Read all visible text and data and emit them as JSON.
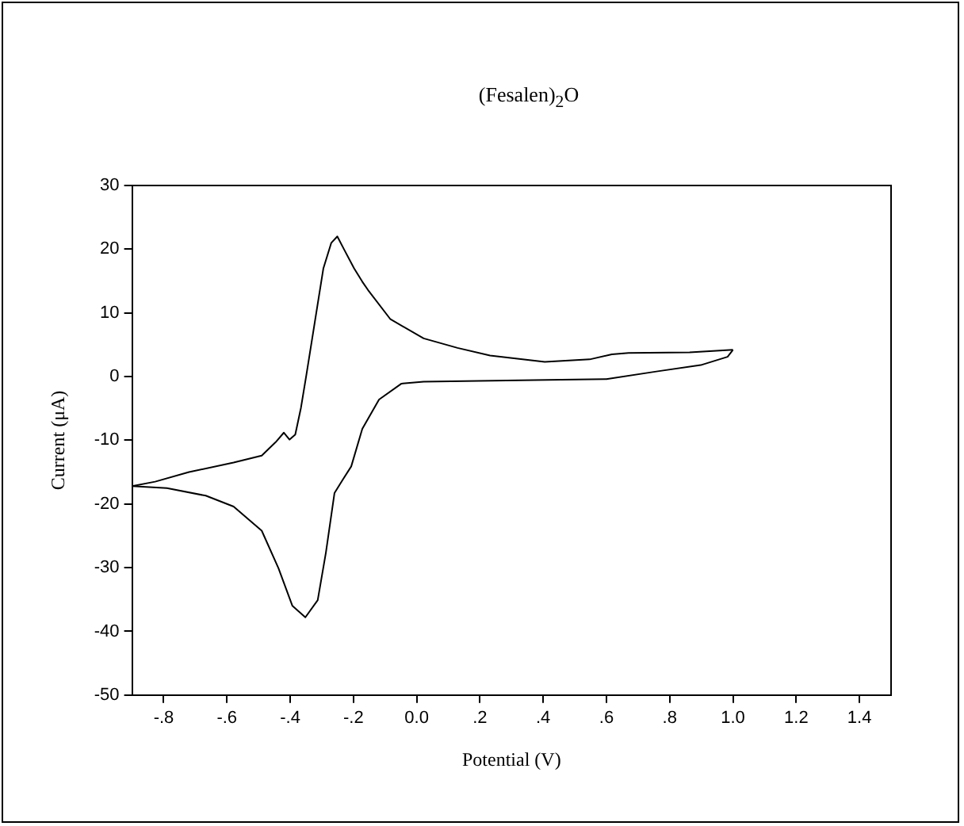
{
  "chart_data": {
    "type": "line",
    "title": "(Fesalen)$_{2}$O",
    "xlabel": "Potential (V)",
    "ylabel": "Current (μA)",
    "xlim": [
      -0.9,
      1.5
    ],
    "ylim": [
      -50,
      30
    ],
    "xticks": [
      {
        "value": -0.8,
        "label": "-.8"
      },
      {
        "value": -0.6,
        "label": "-.6"
      },
      {
        "value": -0.4,
        "label": "-.4"
      },
      {
        "value": -0.2,
        "label": "-.2"
      },
      {
        "value": 0,
        "label": "0.0"
      },
      {
        "value": 0.2,
        "label": ".2"
      },
      {
        "value": 0.4,
        "label": ".4"
      },
      {
        "value": 0.6,
        "label": ".6"
      },
      {
        "value": 0.8,
        "label": ".8"
      },
      {
        "value": 1.0,
        "label": "1.0"
      },
      {
        "value": 1.2,
        "label": "1.2"
      },
      {
        "value": 1.4,
        "label": "1.4"
      }
    ],
    "yticks": [
      -50,
      -40,
      -30,
      -20,
      -10,
      0,
      10,
      20,
      30
    ],
    "grid": false,
    "legend": false,
    "marker": "none",
    "line_style": "solid",
    "series": [
      {
        "color": "#000000",
        "x": [
          -0.9,
          -0.827,
          -0.72,
          -0.579,
          -0.49,
          -0.446,
          -0.42,
          -0.402,
          -0.384,
          -0.366,
          -0.349,
          -0.322,
          -0.295,
          -0.27,
          -0.251,
          -0.23,
          -0.198,
          -0.172,
          -0.154,
          -0.083,
          0.022,
          0.129,
          0.232,
          0.405,
          0.547,
          0.617,
          0.67,
          0.863,
          1.0
        ],
        "values": [
          -17.2,
          -16.5,
          -15,
          -13.5,
          -12.4,
          -10.3,
          -8.8,
          -9.9,
          -9.1,
          -4.9,
          0.2,
          8.6,
          17,
          21,
          22,
          20,
          17,
          14.9,
          13.6,
          9,
          6,
          4.5,
          3.3,
          2.3,
          2.7,
          3.5,
          3.7,
          3.8,
          4.2
        ]
      },
      {
        "color": "#000000",
        "x": [
          -0.9,
          -0.79,
          -0.667,
          -0.579,
          -0.49,
          -0.437,
          -0.393,
          -0.352,
          -0.313,
          -0.287,
          -0.26,
          -0.234,
          -0.207,
          -0.172,
          -0.119,
          -0.048,
          0.022,
          0.458,
          0.6,
          0.758,
          0.898,
          0.983,
          1.0
        ],
        "values": [
          -17.2,
          -17.5,
          -18.7,
          -20.4,
          -24.2,
          -30.1,
          -36,
          -37.8,
          -35.1,
          -27.6,
          -18.3,
          -16.2,
          -14.1,
          -8.2,
          -3.6,
          -1.1,
          -0.8,
          -0.5,
          -0.4,
          0.8,
          1.8,
          3.1,
          4.2
        ]
      }
    ]
  }
}
